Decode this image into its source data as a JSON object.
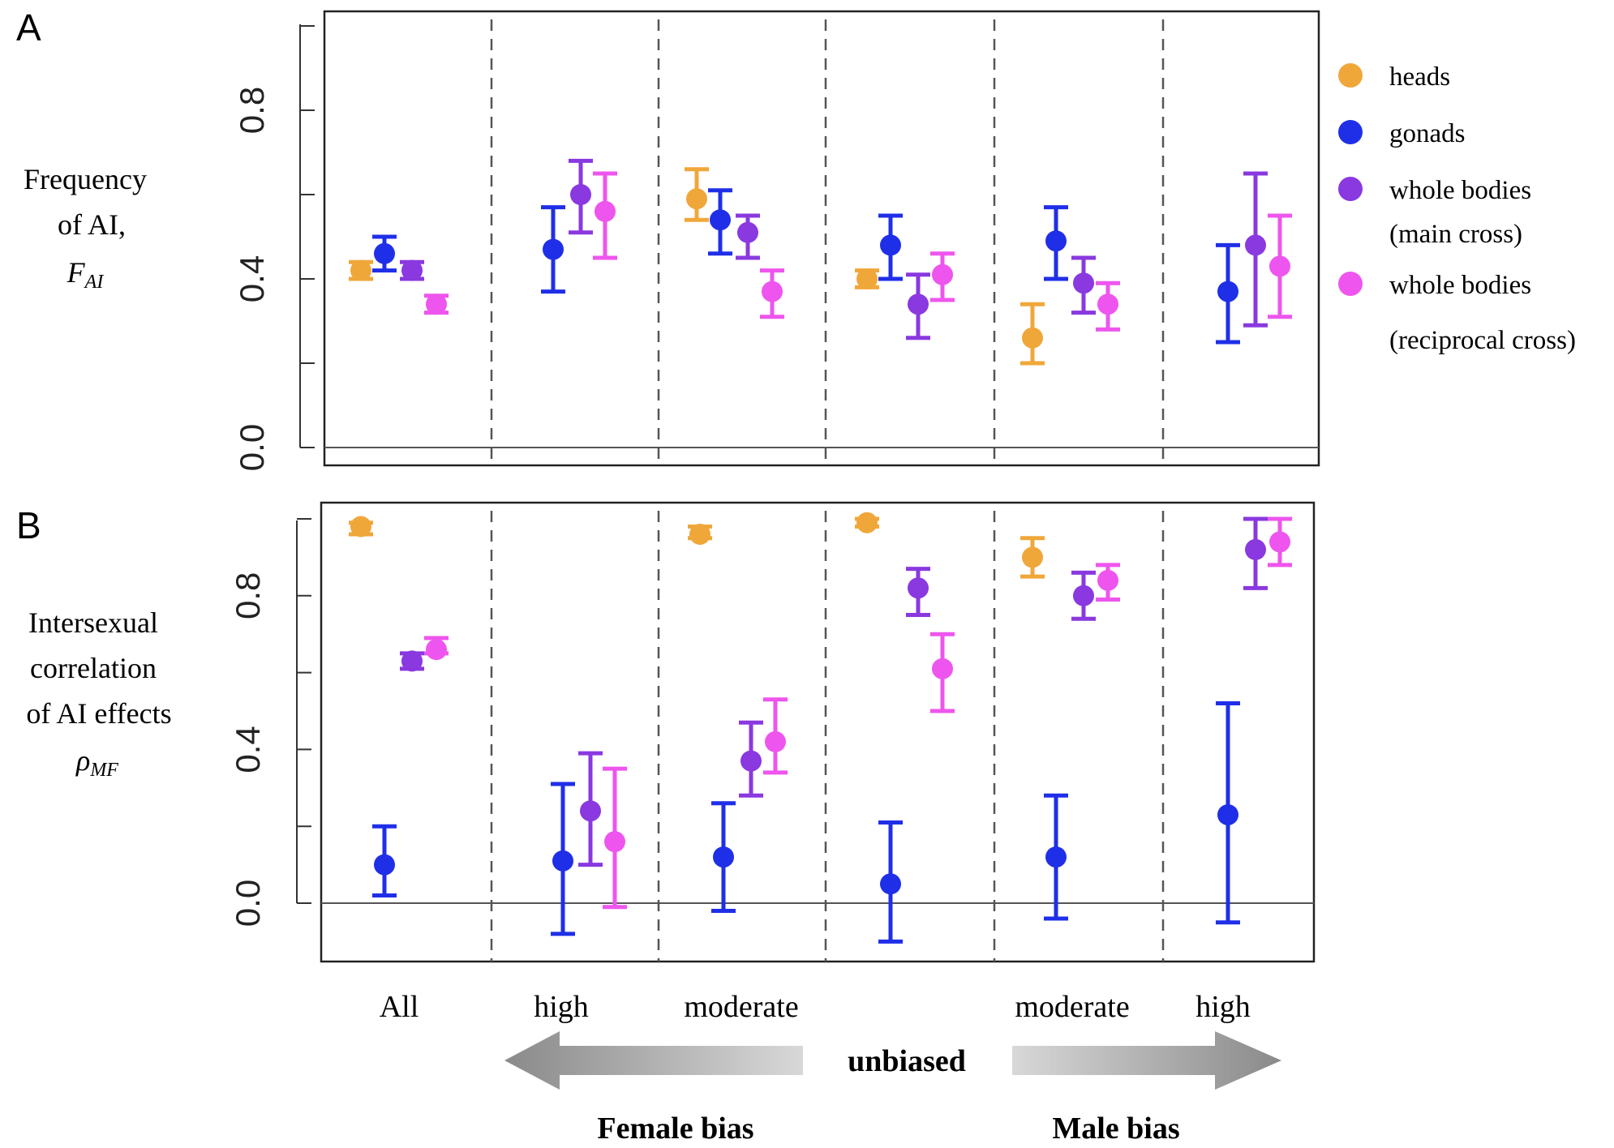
{
  "figure": {
    "panel_a_letter": "A",
    "panel_b_letter": "B",
    "panel_a_ylabel": [
      "Frequency",
      "of AI,"
    ],
    "panel_a_ylabel_symbol": "F",
    "panel_a_ylabel_subscript": "AI",
    "panel_b_ylabel": [
      "Intersexual",
      "correlation",
      "of AI effects"
    ],
    "panel_b_ylabel_symbol": "ρ",
    "panel_b_ylabel_subscript": "MF",
    "categories": [
      "All",
      "high",
      "moderate",
      "unbiased",
      "moderate",
      "high"
    ],
    "category_tick_labels": [
      "All",
      "high",
      "moderate",
      "",
      "moderate",
      "high"
    ],
    "bias_center": "unbiased",
    "bias_female": "Female bias",
    "bias_male": "Male bias",
    "series_names": [
      "heads",
      "gonads",
      "whole bodies",
      "whole bodies"
    ],
    "legend_sublabels": [
      "",
      "",
      "(main cross)",
      "(reciprocal cross)"
    ]
  },
  "chart_data": [
    {
      "panel": "A",
      "type": "scatter",
      "subtype": "point-with-errorbars",
      "ylabel": "Frequency of AI, F_AI",
      "ylim": [
        0.0,
        1.0
      ],
      "yticks": [
        0.0,
        0.4,
        0.8
      ],
      "ytick_labels": [
        "0.0",
        "0.4",
        "0.8"
      ],
      "hline": 0.0,
      "categories": [
        "All",
        "high",
        "moderate",
        "unbiased",
        "moderate",
        "high"
      ],
      "series": [
        {
          "name": "heads",
          "color": "#F0A73A",
          "values": [
            0.42,
            null,
            0.59,
            0.4,
            0.26,
            null
          ],
          "lower": [
            0.4,
            null,
            0.54,
            0.38,
            0.2,
            null
          ],
          "upper": [
            0.44,
            null,
            0.66,
            0.42,
            0.34,
            null
          ]
        },
        {
          "name": "gonads",
          "color": "#1F2FE8",
          "values": [
            0.46,
            0.47,
            0.54,
            0.48,
            0.49,
            0.37
          ],
          "lower": [
            0.42,
            0.37,
            0.46,
            0.4,
            0.4,
            0.25
          ],
          "upper": [
            0.5,
            0.57,
            0.61,
            0.55,
            0.57,
            0.48
          ]
        },
        {
          "name": "whole bodies (main cross)",
          "color": "#8A38E0",
          "values": [
            0.42,
            null,
            0.51,
            0.34,
            0.39,
            0.48
          ],
          "lower": [
            0.4,
            null,
            0.45,
            0.26,
            0.32,
            0.29
          ],
          "upper": [
            0.44,
            null,
            0.55,
            0.41,
            0.45,
            0.65
          ]
        },
        {
          "name": "whole bodies (reciprocal cross)",
          "color": "#EE55EE",
          "values": [
            0.34,
            null,
            0.37,
            0.41,
            0.34,
            0.43
          ],
          "lower": [
            0.32,
            null,
            0.31,
            0.35,
            0.28,
            0.31
          ],
          "upper": [
            0.36,
            null,
            0.42,
            0.46,
            0.39,
            0.55
          ]
        }
      ],
      "extra_points": [
        {
          "series": "whole bodies (main cross)",
          "category": "high (female)",
          "value": 0.6,
          "lower": 0.51,
          "upper": 0.68
        },
        {
          "series": "whole bodies (reciprocal cross)",
          "category": "high (female)",
          "value": 0.56,
          "lower": 0.45,
          "upper": 0.65
        }
      ],
      "legend": [
        "heads",
        "gonads",
        "whole bodies (main cross)",
        "whole bodies (reciprocal cross)"
      ],
      "legend_position": "right"
    },
    {
      "panel": "B",
      "type": "scatter",
      "subtype": "point-with-errorbars",
      "ylabel": "Intersexual correlation of AI effects ρ_MF",
      "ylim": [
        -0.14,
        1.02
      ],
      "yticks": [
        0.0,
        0.4,
        0.8
      ],
      "ytick_labels": [
        "0.0",
        "0.4",
        "0.8"
      ],
      "hline": 0.0,
      "categories": [
        "All",
        "high",
        "moderate",
        "unbiased",
        "moderate",
        "high"
      ],
      "series": [
        {
          "name": "heads",
          "color": "#F0A73A",
          "values": [
            0.98,
            null,
            0.96,
            0.99,
            0.9,
            null
          ],
          "lower": [
            0.96,
            null,
            0.95,
            0.98,
            0.85,
            null
          ],
          "upper": [
            0.99,
            null,
            0.98,
            1.0,
            0.95,
            null
          ]
        },
        {
          "name": "gonads",
          "color": "#1F2FE8",
          "values": [
            0.1,
            0.11,
            0.12,
            0.05,
            0.12,
            0.23
          ],
          "lower": [
            0.02,
            -0.08,
            -0.02,
            -0.1,
            -0.04,
            -0.05
          ],
          "upper": [
            0.2,
            0.31,
            0.26,
            0.21,
            0.28,
            0.52
          ]
        },
        {
          "name": "whole bodies (main cross)",
          "color": "#8A38E0",
          "values": [
            0.63,
            0.24,
            0.37,
            0.82,
            0.8,
            0.92
          ],
          "lower": [
            0.61,
            0.1,
            0.28,
            0.75,
            0.74,
            0.82
          ],
          "upper": [
            0.65,
            0.39,
            0.47,
            0.87,
            0.86,
            1.0
          ]
        },
        {
          "name": "whole bodies (reciprocal cross)",
          "color": "#EE55EE",
          "values": [
            0.66,
            0.16,
            0.42,
            0.61,
            0.84,
            0.94
          ],
          "lower": [
            0.65,
            -0.01,
            0.34,
            0.5,
            0.79,
            0.88
          ],
          "upper": [
            0.69,
            0.35,
            0.53,
            0.7,
            0.88,
            1.0
          ]
        }
      ]
    }
  ]
}
